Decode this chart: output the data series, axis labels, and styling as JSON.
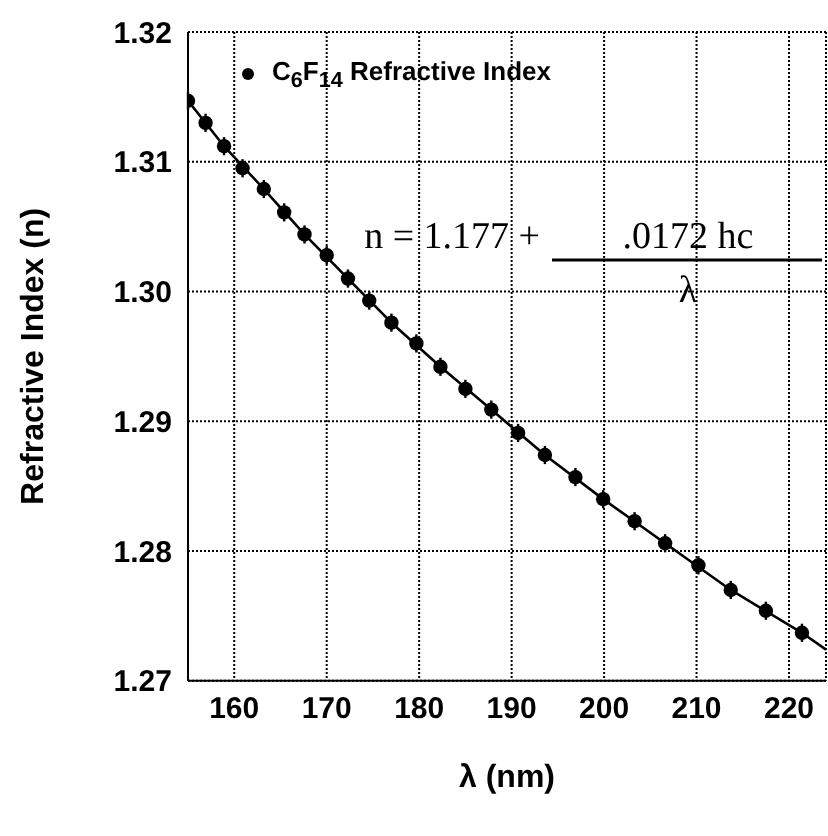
{
  "chart_data": {
    "type": "scatter",
    "xlabel": "λ (nm)",
    "ylabel": "Refractive Index (n)",
    "xlim": [
      155,
      224
    ],
    "ylim": [
      1.27,
      1.32
    ],
    "xticks": [
      160,
      170,
      180,
      190,
      200,
      210,
      220
    ],
    "yticks": [
      {
        "value": 1.27,
        "label": "1.27"
      },
      {
        "value": 1.28,
        "label": "1.28"
      },
      {
        "value": 1.29,
        "label": "1.29"
      },
      {
        "value": 1.3,
        "label": "1.30"
      },
      {
        "value": 1.31,
        "label": "1.31"
      },
      {
        "value": 1.32,
        "label": "1.32"
      }
    ],
    "grid": true,
    "legend": "top left",
    "marker": "circle",
    "annotations": [
      "n = 1.177 +",
      ".0172 hc",
      "λ"
    ],
    "series": [
      {
        "name": "C$_{6}$F$_{14}$ Refractive Index",
        "color": "#000000",
        "x": [
          155.0,
          156.9,
          158.9,
          160.9,
          163.2,
          165.4,
          167.6,
          170.0,
          172.3,
          174.6,
          177.0,
          179.7,
          182.3,
          185.0,
          187.8,
          190.7,
          193.6,
          196.9,
          199.9,
          203.3,
          206.6,
          210.2,
          213.7,
          217.5,
          221.4
        ],
        "values": [
          1.3147,
          1.313,
          1.3112,
          1.3095,
          1.3079,
          1.3061,
          1.3044,
          1.3028,
          1.301,
          1.2993,
          1.2976,
          1.296,
          1.2942,
          1.2925,
          1.2909,
          1.2891,
          1.2874,
          1.2857,
          1.284,
          1.2823,
          1.2806,
          1.2789,
          1.277,
          1.2754,
          1.2737
        ],
        "errors": [
          0.0007,
          0.0007,
          0.0007,
          0.0007,
          0.0007,
          0.0007,
          0.0007,
          0.0007,
          0.0007,
          0.0007,
          0.0007,
          0.0007,
          0.0007,
          0.0007,
          0.0007,
          0.0007,
          0.0007,
          0.0007,
          0.0007,
          0.0007,
          0.0007,
          0.0007,
          0.0007,
          0.0007,
          0.0007
        ]
      },
      {
        "type": "line",
        "color": "#000000",
        "line_style": "solid",
        "marker": "none",
        "x": [
          155.0,
          158.9,
          163.2,
          167.6,
          172.3,
          177.0,
          182.3,
          187.8,
          193.6,
          199.9,
          206.6,
          213.7,
          221.4,
          224.0
        ],
        "values": [
          1.3147,
          1.3112,
          1.3079,
          1.3044,
          1.301,
          1.2976,
          1.2942,
          1.2909,
          1.2874,
          1.284,
          1.2806,
          1.277,
          1.2737,
          1.2724
        ]
      }
    ]
  }
}
